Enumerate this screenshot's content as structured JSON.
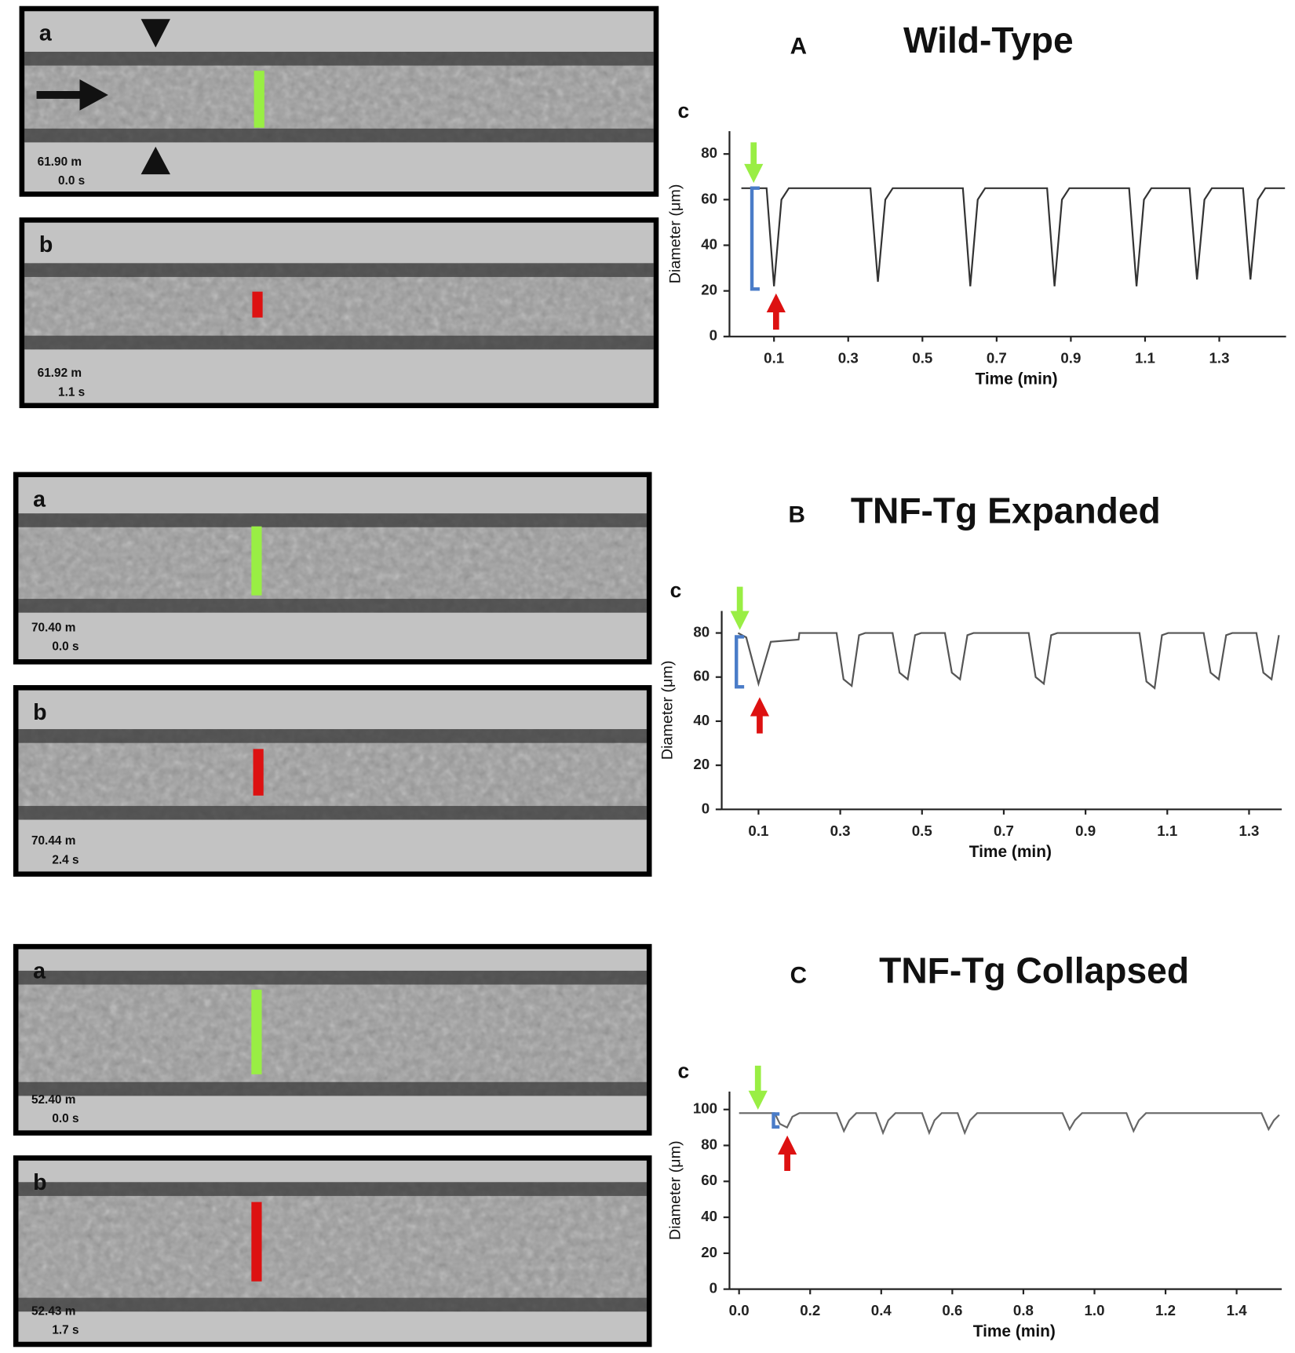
{
  "panels": [
    {
      "label": "A",
      "title": "Wild-Type",
      "images": [
        {
          "label": "a",
          "depth": "61.90 m",
          "time": "0.0 s"
        },
        {
          "label": "b",
          "depth": "61.92 m",
          "time": "1.1 s"
        }
      ]
    },
    {
      "label": "B",
      "title": "TNF-Tg Expanded",
      "images": [
        {
          "label": "a",
          "depth": "70.40 m",
          "time": "0.0 s"
        },
        {
          "label": "b",
          "depth": "70.44 m",
          "time": "2.4 s"
        }
      ]
    },
    {
      "label": "C",
      "title": "TNF-Tg Collapsed",
      "images": [
        {
          "label": "a",
          "depth": "52.40 m",
          "time": "0.0 s"
        },
        {
          "label": "b",
          "depth": "52.43 m",
          "time": "1.7 s"
        }
      ]
    }
  ],
  "chart_data": [
    {
      "type": "line",
      "label": "c",
      "xlabel": "Time (min)",
      "ylabel": "Diameter (μm)",
      "x": [
        0.012,
        0.08,
        0.1,
        0.12,
        0.14,
        0.36,
        0.38,
        0.4,
        0.42,
        0.609,
        0.629,
        0.649,
        0.669,
        0.836,
        0.856,
        0.876,
        0.896,
        1.057,
        1.077,
        1.097,
        1.117,
        1.22,
        1.24,
        1.26,
        1.28,
        1.364,
        1.384,
        1.404,
        1.424,
        1.477
      ],
      "series": [
        {
          "color": "#333333",
          "values": [
            65,
            65,
            22,
            60,
            65,
            65,
            24,
            60,
            65,
            65,
            22,
            60,
            65,
            65,
            22,
            60,
            65,
            65,
            22,
            60,
            65,
            65,
            25,
            60,
            65,
            65,
            25,
            60,
            65,
            65
          ]
        }
      ],
      "xlim": [
        -0.02,
        1.48
      ],
      "ylim": [
        0,
        90
      ],
      "xticks": [
        0.1,
        0.3,
        0.5,
        0.7,
        0.9,
        1.1,
        1.3
      ],
      "yticks": [
        0,
        20,
        40,
        60,
        80
      ]
    },
    {
      "type": "line",
      "label": "c",
      "xlabel": "Time (min)",
      "ylabel": "Diameter (μm)",
      "x": [
        0.05,
        0.07,
        0.1,
        0.13,
        0.198,
        0.2,
        0.291,
        0.308,
        0.328,
        0.346,
        0.361,
        0.428,
        0.445,
        0.465,
        0.483,
        0.498,
        0.556,
        0.573,
        0.593,
        0.611,
        0.626,
        0.761,
        0.778,
        0.798,
        0.816,
        0.831,
        1.032,
        1.049,
        1.069,
        1.087,
        1.102,
        1.189,
        1.206,
        1.226,
        1.244,
        1.259,
        1.318,
        1.335,
        1.355,
        1.373
      ],
      "series": [
        {
          "color": "#555555",
          "values": [
            80,
            78,
            57,
            76,
            77,
            80,
            80,
            59,
            56,
            79,
            80,
            80,
            62,
            59,
            79,
            80,
            80,
            62,
            59,
            79,
            80,
            80,
            60,
            57,
            79,
            80,
            80,
            58,
            55,
            79,
            80,
            80,
            62,
            59,
            79,
            80,
            80,
            62,
            59,
            79
          ]
        }
      ],
      "xlim": [
        0.01,
        1.38
      ],
      "ylim": [
        0,
        90
      ],
      "xticks": [
        0.1,
        0.3,
        0.5,
        0.7,
        0.9,
        1.1,
        1.3
      ],
      "yticks": [
        0,
        20,
        40,
        60,
        80
      ]
    },
    {
      "type": "line",
      "label": "c",
      "xlabel": "Time (min)",
      "ylabel": "Diameter (μm)",
      "x": [
        0,
        0.1,
        0.115,
        0.135,
        0.15,
        0.17,
        0.275,
        0.295,
        0.31,
        0.33,
        0.385,
        0.405,
        0.42,
        0.44,
        0.515,
        0.535,
        0.55,
        0.57,
        0.615,
        0.635,
        0.65,
        0.67,
        0.91,
        0.93,
        0.945,
        0.965,
        1.09,
        1.11,
        1.125,
        1.145,
        1.47,
        1.49,
        1.505,
        1.52
      ],
      "series": [
        {
          "color": "#666666",
          "values": [
            98,
            98,
            92,
            90,
            96,
            98,
            98,
            88,
            94,
            98,
            98,
            87,
            94,
            98,
            98,
            87,
            94,
            98,
            98,
            87,
            94,
            98,
            98,
            89,
            94,
            98,
            98,
            88,
            94,
            98,
            98,
            89,
            94,
            97
          ]
        }
      ],
      "xlim": [
        -0.027,
        1.527
      ],
      "ylim": [
        0,
        110
      ],
      "xticks": [
        {
          "value": 0,
          "label": "0.0"
        },
        0.2,
        0.4,
        0.6,
        0.8,
        {
          "value": 1,
          "label": "1.0"
        },
        1.2,
        1.4
      ],
      "yticks": [
        0,
        20,
        40,
        60,
        80,
        100
      ]
    }
  ]
}
